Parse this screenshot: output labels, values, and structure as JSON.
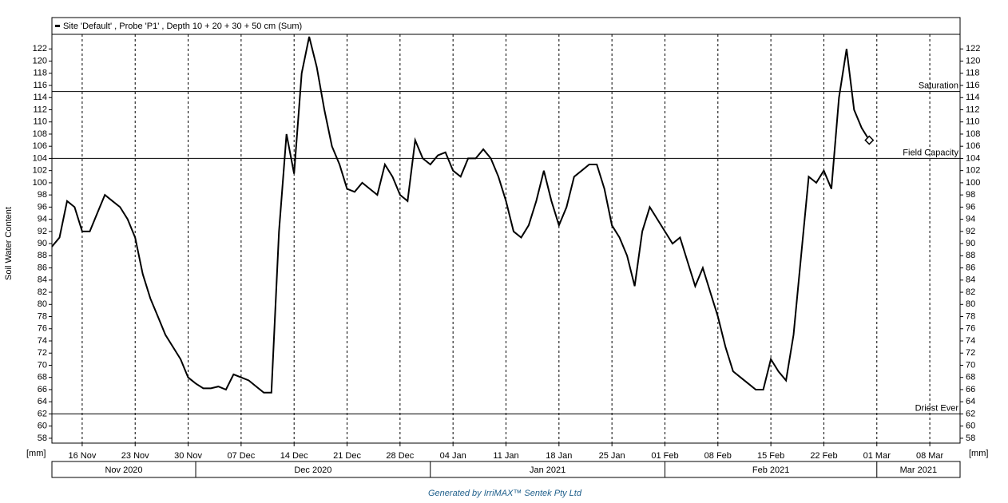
{
  "chart_data": {
    "type": "line",
    "y_label": "Soil Water Content",
    "y_unit": "[mm]",
    "footer": "Generated by IrriMAX™ Sentek Pty Ltd",
    "ylim": [
      57.2,
      124.4
    ],
    "yticks": [
      58,
      60,
      62,
      64,
      66,
      68,
      70,
      72,
      74,
      76,
      78,
      80,
      82,
      84,
      86,
      88,
      90,
      92,
      94,
      96,
      98,
      100,
      102,
      104,
      106,
      108,
      110,
      112,
      114,
      116,
      118,
      120,
      122
    ],
    "xlim": [
      "2020-11-12",
      "2021-03-12"
    ],
    "xticks": [
      {
        "value": "2020-11-16",
        "label": "16 Nov"
      },
      {
        "value": "2020-11-23",
        "label": "23 Nov"
      },
      {
        "value": "2020-11-30",
        "label": "30 Nov"
      },
      {
        "value": "2020-12-07",
        "label": "07 Dec"
      },
      {
        "value": "2020-12-14",
        "label": "14 Dec"
      },
      {
        "value": "2020-12-21",
        "label": "21 Dec"
      },
      {
        "value": "2020-12-28",
        "label": "28 Dec"
      },
      {
        "value": "2021-01-04",
        "label": "04 Jan"
      },
      {
        "value": "2021-01-11",
        "label": "11 Jan"
      },
      {
        "value": "2021-01-18",
        "label": "18 Jan"
      },
      {
        "value": "2021-01-25",
        "label": "25 Jan"
      },
      {
        "value": "2021-02-01",
        "label": "01 Feb"
      },
      {
        "value": "2021-02-08",
        "label": "08 Feb"
      },
      {
        "value": "2021-02-15",
        "label": "15 Feb"
      },
      {
        "value": "2021-02-22",
        "label": "22 Feb"
      },
      {
        "value": "2021-03-01",
        "label": "01 Mar"
      },
      {
        "value": "2021-03-08",
        "label": "08 Mar"
      }
    ],
    "months": [
      {
        "value": "2020-11-01",
        "label": "Nov 2020"
      },
      {
        "value": "2020-12-01",
        "label": "Dec 2020"
      },
      {
        "value": "2021-01-01",
        "label": "Jan 2021"
      },
      {
        "value": "2021-02-01",
        "label": "Feb 2021"
      },
      {
        "value": "2021-03-01",
        "label": "Mar 2021"
      }
    ],
    "reference_lines": [
      {
        "value": 115,
        "label": "Saturation"
      },
      {
        "value": 104,
        "label": "Field Capacity"
      },
      {
        "value": 62,
        "label": "Driest Ever"
      }
    ],
    "x": [
      "2020-11-12",
      "2020-11-13",
      "2020-11-14",
      "2020-11-15",
      "2020-11-16",
      "2020-11-17",
      "2020-11-18",
      "2020-11-19",
      "2020-11-20",
      "2020-11-21",
      "2020-11-22",
      "2020-11-23",
      "2020-11-24",
      "2020-11-25",
      "2020-11-26",
      "2020-11-27",
      "2020-11-28",
      "2020-11-29",
      "2020-11-30",
      "2020-12-01",
      "2020-12-02",
      "2020-12-03",
      "2020-12-04",
      "2020-12-05",
      "2020-12-06",
      "2020-12-07",
      "2020-12-08",
      "2020-12-09",
      "2020-12-10",
      "2020-12-11",
      "2020-12-12",
      "2020-12-13",
      "2020-12-14",
      "2020-12-15",
      "2020-12-16",
      "2020-12-17",
      "2020-12-18",
      "2020-12-19",
      "2020-12-20",
      "2020-12-21",
      "2020-12-22",
      "2020-12-23",
      "2020-12-24",
      "2020-12-25",
      "2020-12-26",
      "2020-12-27",
      "2020-12-28",
      "2020-12-29",
      "2020-12-30",
      "2020-12-31",
      "2021-01-01",
      "2021-01-02",
      "2021-01-03",
      "2021-01-04",
      "2021-01-05",
      "2021-01-06",
      "2021-01-07",
      "2021-01-08",
      "2021-01-09",
      "2021-01-10",
      "2021-01-11",
      "2021-01-12",
      "2021-01-13",
      "2021-01-14",
      "2021-01-15",
      "2021-01-16",
      "2021-01-17",
      "2021-01-18",
      "2021-01-19",
      "2021-01-20",
      "2021-01-21",
      "2021-01-22",
      "2021-01-23",
      "2021-01-24",
      "2021-01-25",
      "2021-01-26",
      "2021-01-27",
      "2021-01-28",
      "2021-01-29",
      "2021-01-30",
      "2021-01-31",
      "2021-02-01",
      "2021-02-02",
      "2021-02-03",
      "2021-02-04",
      "2021-02-05",
      "2021-02-06",
      "2021-02-07",
      "2021-02-08",
      "2021-02-09",
      "2021-02-10",
      "2021-02-11",
      "2021-02-12",
      "2021-02-13",
      "2021-02-14",
      "2021-02-15",
      "2021-02-16",
      "2021-02-17",
      "2021-02-18",
      "2021-02-19",
      "2021-02-20",
      "2021-02-21",
      "2021-02-22",
      "2021-02-23",
      "2021-02-24",
      "2021-02-25",
      "2021-02-26",
      "2021-02-27",
      "2021-02-28"
    ],
    "series": [
      {
        "name": "Site 'Default' , Probe 'P1' , Depth 10 + 20 + 30 + 50 cm (Sum)",
        "color": "#000000",
        "values": [
          89.5,
          91,
          97,
          96,
          92,
          92,
          95,
          98,
          97,
          96,
          94,
          91,
          85,
          81,
          78,
          75,
          73,
          71,
          68,
          67,
          66.2,
          66.2,
          66.5,
          66,
          68.5,
          68,
          67.5,
          66.5,
          65.5,
          65.5,
          92,
          108,
          101.5,
          118,
          124,
          119,
          112,
          106,
          103,
          99,
          98.5,
          100,
          99,
          98,
          103,
          101,
          98,
          97,
          107,
          104,
          103,
          104.5,
          105,
          102,
          101,
          104,
          104,
          105.5,
          104,
          101,
          97,
          92,
          91,
          93,
          97,
          102,
          97,
          93,
          96,
          101,
          102,
          103,
          103,
          99,
          93,
          91,
          88,
          83,
          92,
          96,
          94,
          92,
          90,
          91,
          87,
          83,
          86,
          82,
          78,
          73,
          69,
          68,
          67,
          66,
          66,
          71,
          69,
          67.5,
          75,
          88,
          101,
          100,
          102,
          99,
          114,
          122,
          112,
          109,
          107
        ]
      }
    ]
  }
}
